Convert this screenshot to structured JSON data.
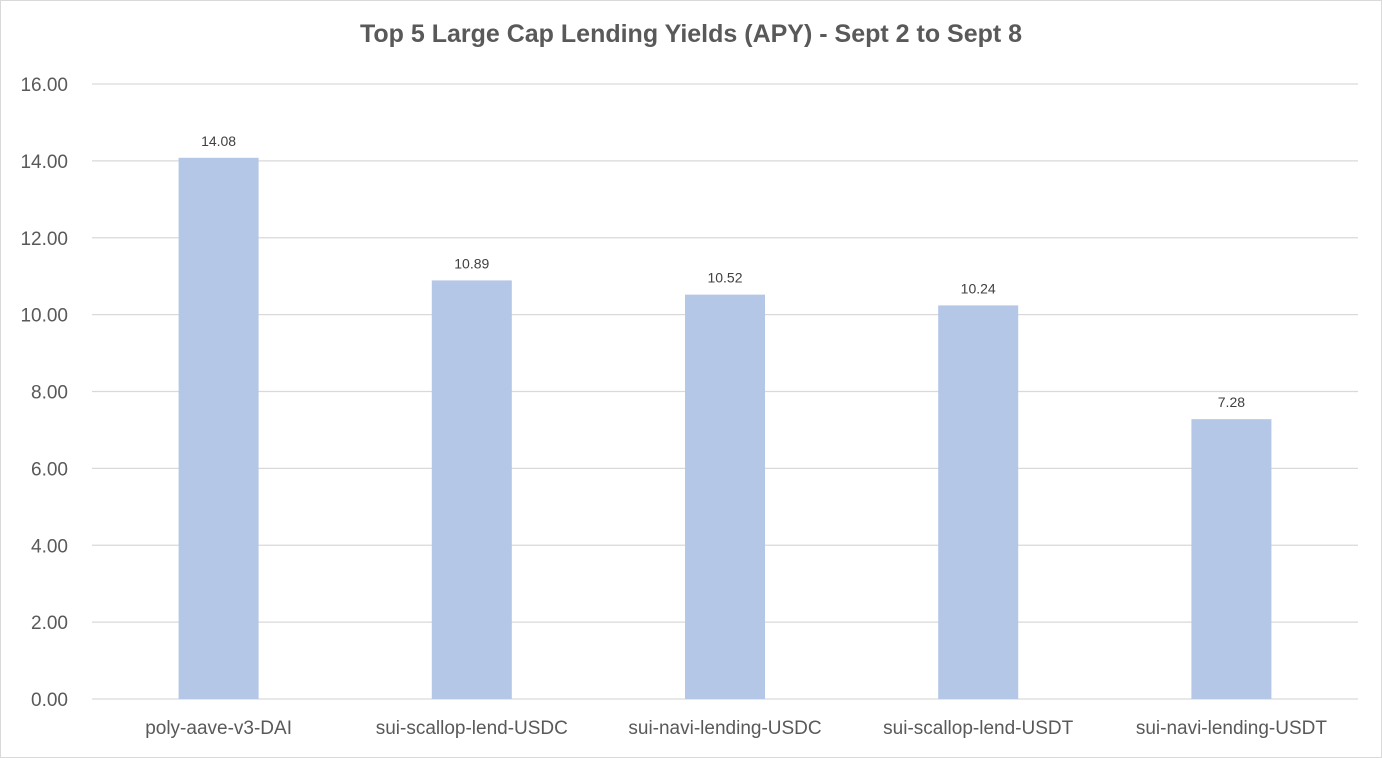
{
  "chart_data": {
    "type": "bar",
    "title": "Top 5 Large Cap Lending Yields (APY) - Sept 2 to Sept 8",
    "xlabel": "",
    "ylabel": "",
    "categories": [
      "poly-aave-v3-DAI",
      "sui-scallop-lend-USDC",
      "sui-navi-lending-USDC",
      "sui-scallop-lend-USDT",
      "sui-navi-lending-USDT"
    ],
    "values": [
      14.08,
      10.89,
      10.52,
      10.24,
      7.28
    ],
    "data_labels": [
      "14.08",
      "10.89",
      "10.52",
      "10.24",
      "7.28"
    ],
    "ylim": [
      0,
      16
    ],
    "yticks": [
      0,
      2,
      4,
      6,
      8,
      10,
      12,
      14,
      16
    ],
    "ytick_labels": [
      "0.00",
      "2.00",
      "4.00",
      "6.00",
      "8.00",
      "10.00",
      "12.00",
      "14.00",
      "16.00"
    ],
    "grid": true,
    "legend": "none",
    "bar_color": "#b4c7e7",
    "gridline_color": "#d9d9d9",
    "text_color": "#595959"
  }
}
